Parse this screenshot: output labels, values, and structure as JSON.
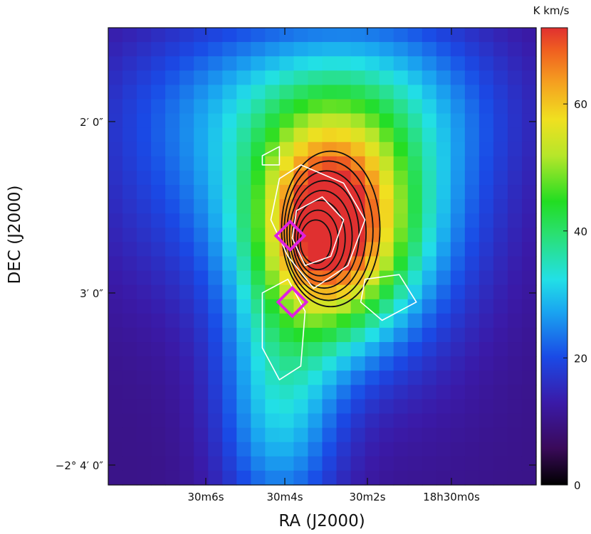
{
  "chart_data": {
    "type": "heatmap",
    "xlabel": "RA (J2000)",
    "ylabel": "DEC (J2000)",
    "colorbar": {
      "label": "K km/s",
      "range": [
        0,
        72
      ],
      "ticks": [
        {
          "value": 0,
          "label": "0"
        },
        {
          "value": 20,
          "label": "20"
        },
        {
          "value": 40,
          "label": "40"
        },
        {
          "value": 60,
          "label": "60"
        }
      ]
    },
    "x_ticks": [
      {
        "label": "30m6s"
      },
      {
        "label": "30m4s"
      },
      {
        "label": "30m2s"
      },
      {
        "label": "18h30m0s"
      }
    ],
    "y_ticks": [
      {
        "label": "2′ 0″"
      },
      {
        "label": "3′ 0″"
      },
      {
        "label": "−2° 4′ 0″"
      }
    ],
    "map": {
      "cells_x": 30,
      "cells_y": 32,
      "background_level": 10,
      "components": [
        {
          "cx": 0.52,
          "cy": 0.44,
          "amp": 52,
          "sx": 0.12,
          "sy": 0.16
        },
        {
          "cx": 0.44,
          "cy": 0.3,
          "amp": 18,
          "sx": 0.28,
          "sy": 0.22
        },
        {
          "cx": 0.4,
          "cy": 0.82,
          "amp": 20,
          "sx": 0.1,
          "sy": 0.2
        },
        {
          "cx": 0.7,
          "cy": 0.4,
          "amp": 8,
          "sx": 0.14,
          "sy": 0.28
        },
        {
          "cx": 0.5,
          "cy": 0.15,
          "amp": 8,
          "sx": 0.3,
          "sy": 0.12
        }
      ]
    },
    "markers": [
      {
        "shape": "diamond",
        "color": "#e020e0",
        "ra_frac": 0.425,
        "dec_frac": 0.455
      },
      {
        "shape": "diamond",
        "color": "#e020e0",
        "ra_frac": 0.43,
        "dec_frac": 0.6
      }
    ],
    "contours": {
      "black_levels": [
        40,
        44,
        48,
        52,
        56,
        60,
        64,
        68
      ],
      "white_color": "#ffffff",
      "black_color": "#111111"
    }
  }
}
